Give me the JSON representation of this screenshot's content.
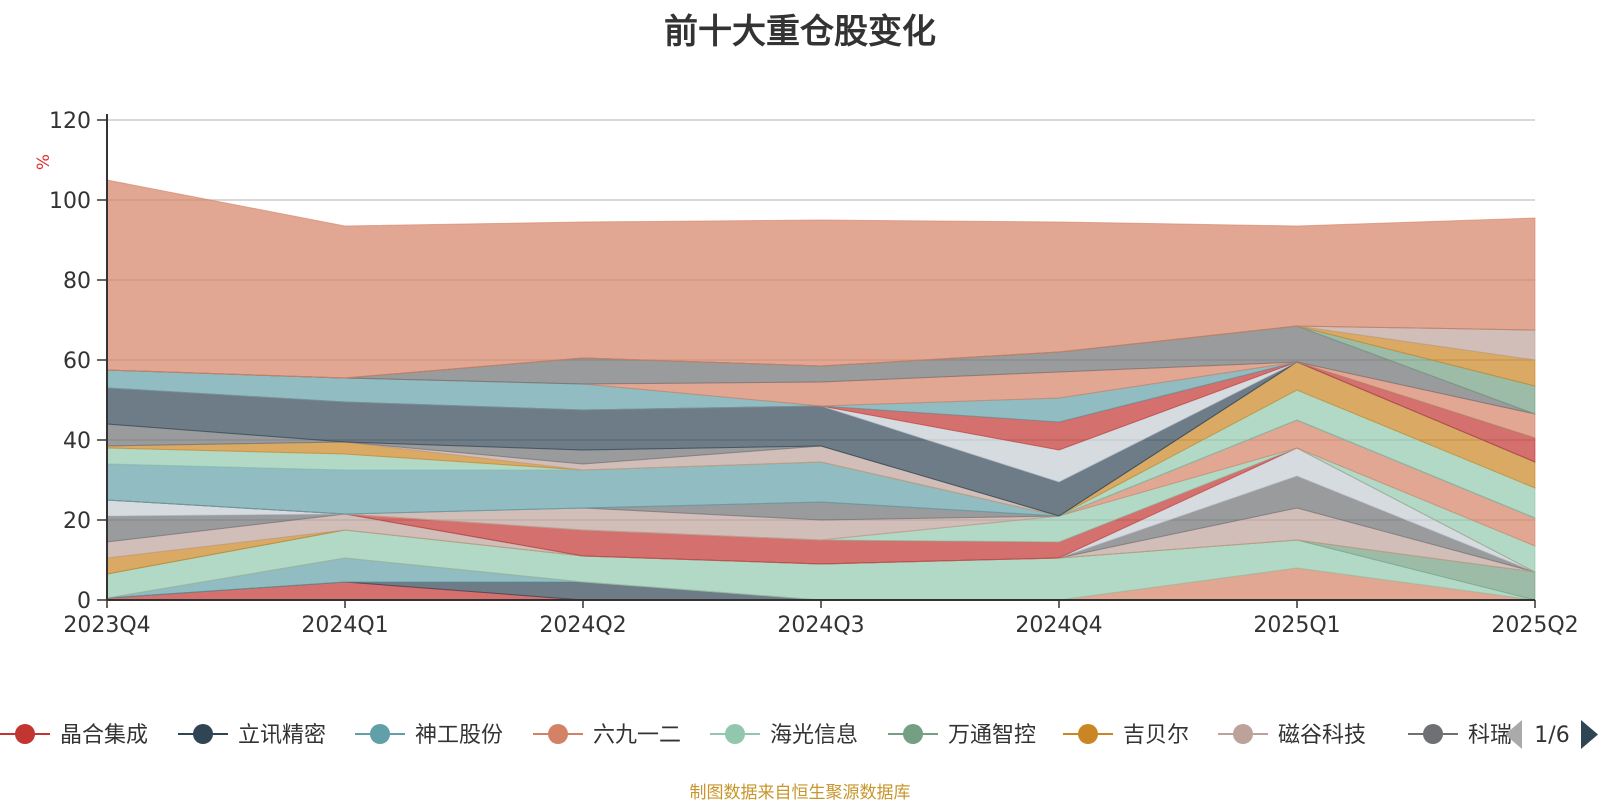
{
  "chart_data": {
    "type": "area",
    "title": "前十大重仓股变化",
    "ylabel": "%",
    "ylim": [
      0,
      120
    ],
    "yticks": [
      0,
      20,
      40,
      60,
      80,
      100,
      120
    ],
    "categories": [
      "2023Q4",
      "2024Q1",
      "2024Q2",
      "2024Q3",
      "2024Q4",
      "2025Q1",
      "2025Q2"
    ],
    "stacked": true,
    "grid": true,
    "series": [
      {
        "name": "晶合集成",
        "color": "#c23531",
        "values": [
          0.5,
          4.5,
          0,
          0,
          0,
          0,
          0
        ]
      },
      {
        "name": "立讯精密",
        "color": "#2f4554",
        "values": [
          0,
          0,
          4.5,
          0,
          0,
          0,
          0
        ]
      },
      {
        "name": "神工股份",
        "color": "#61a0a8",
        "values": [
          0,
          6,
          0,
          0,
          0,
          0,
          0
        ]
      },
      {
        "name": "六九一二",
        "color": "#d48265",
        "values": [
          0,
          0,
          0,
          0,
          0,
          8,
          0
        ]
      },
      {
        "name": "海光信息",
        "color": "#91c7ae",
        "values": [
          6,
          7,
          6.5,
          9,
          10.5,
          7,
          0
        ]
      },
      {
        "name": "万通智控",
        "color": "#749f83",
        "values": [
          0,
          0,
          0,
          0,
          0,
          0,
          7
        ]
      },
      {
        "name": "吉贝尔",
        "color": "#ca8622",
        "values": [
          4,
          0,
          0,
          0,
          0,
          0,
          0
        ]
      },
      {
        "name": "磁谷科技",
        "color": "#bda29a",
        "values": [
          4,
          4,
          0,
          0,
          0,
          8,
          0
        ]
      },
      {
        "name": "科瑞技术",
        "color": "#6e7074",
        "values": [
          6.5,
          0,
          0,
          0,
          0,
          8,
          0
        ]
      },
      {
        "name": "",
        "color": "#c4ccd3",
        "values": [
          4,
          0,
          0,
          0,
          0,
          7,
          0
        ]
      },
      {
        "name": "",
        "color": "#c23531",
        "values": [
          0,
          0,
          6.5,
          6,
          4,
          0,
          0
        ]
      },
      {
        "name": "",
        "color": "#91c7ae",
        "values": [
          0,
          0,
          0,
          0,
          6.5,
          0,
          6.5
        ]
      },
      {
        "name": "",
        "color": "#d48265",
        "values": [
          0,
          0,
          0,
          0,
          0,
          7,
          7
        ]
      },
      {
        "name": "",
        "color": "#bda29a",
        "values": [
          0,
          0,
          5.5,
          5,
          0,
          0,
          0
        ]
      },
      {
        "name": "",
        "color": "#6e7074",
        "values": [
          0,
          0,
          0,
          4.5,
          0,
          0,
          0
        ]
      },
      {
        "name": "",
        "color": "#61a0a8",
        "values": [
          9,
          11,
          9.5,
          10,
          0,
          0,
          0
        ]
      },
      {
        "name": "",
        "color": "#91c7ae",
        "values": [
          4,
          4,
          0,
          0,
          0,
          7.5,
          7.5
        ]
      },
      {
        "name": "",
        "color": "#ca8622",
        "values": [
          0.5,
          3,
          0,
          0,
          0,
          7,
          6.5
        ]
      },
      {
        "name": "",
        "color": "#bda29a",
        "values": [
          0,
          0,
          1.5,
          4,
          0,
          0,
          0
        ]
      },
      {
        "name": "",
        "color": "#6e7074",
        "values": [
          5.5,
          0,
          3.5,
          0,
          0,
          0,
          0
        ]
      },
      {
        "name": "",
        "color": "#2f4554",
        "values": [
          9,
          10,
          10,
          10,
          8.5,
          0,
          0
        ]
      },
      {
        "name": "",
        "color": "#c4ccd3",
        "values": [
          0,
          0,
          0,
          0,
          8,
          0,
          0
        ]
      },
      {
        "name": "",
        "color": "#c23531",
        "values": [
          0,
          0,
          0,
          0,
          7,
          0,
          6
        ]
      },
      {
        "name": "",
        "color": "#61a0a8",
        "values": [
          4.5,
          6,
          6.5,
          0,
          6,
          0,
          0
        ]
      },
      {
        "name": "",
        "color": "#d48265",
        "values": [
          0,
          0,
          0,
          6,
          6.5,
          0,
          6
        ]
      },
      {
        "name": "",
        "color": "#6e7074",
        "values": [
          0,
          0,
          6.5,
          4,
          5,
          9,
          0
        ]
      },
      {
        "name": "",
        "color": "#749f83",
        "values": [
          0,
          0,
          0,
          0,
          0,
          0,
          7
        ]
      },
      {
        "name": "",
        "color": "#ca8622",
        "values": [
          0,
          0,
          0,
          0,
          0,
          0,
          6.5
        ]
      },
      {
        "name": "",
        "color": "#bda29a",
        "values": [
          0,
          0,
          0,
          0,
          0,
          0,
          7.5
        ]
      },
      {
        "name": "",
        "color": "#6e7074",
        "values": [
          0,
          0,
          0,
          0,
          0,
          0,
          0
        ]
      },
      {
        "name": "",
        "color": "#d48265",
        "values": [
          47.5,
          38,
          34,
          36.5,
          32.5,
          25,
          28
        ]
      }
    ]
  },
  "legend": {
    "visible_items": [
      {
        "name": "晶合集成",
        "color": "#c23531"
      },
      {
        "name": "立讯精密",
        "color": "#2f4554"
      },
      {
        "name": "神工股份",
        "color": "#61a0a8"
      },
      {
        "name": "六九一二",
        "color": "#d48265"
      },
      {
        "name": "海光信息",
        "color": "#91c7ae"
      },
      {
        "name": "万通智控",
        "color": "#749f83"
      },
      {
        "name": "吉贝尔",
        "color": "#ca8622"
      },
      {
        "name": "磁谷科技",
        "color": "#bda29a"
      },
      {
        "name": "科瑞",
        "color": "#6e7074"
      }
    ],
    "page_indicator": "1/6",
    "prev_icon": "triangle-left-icon",
    "next_icon": "triangle-right-icon"
  },
  "source_note": "制图数据来自恒生聚源数据库"
}
